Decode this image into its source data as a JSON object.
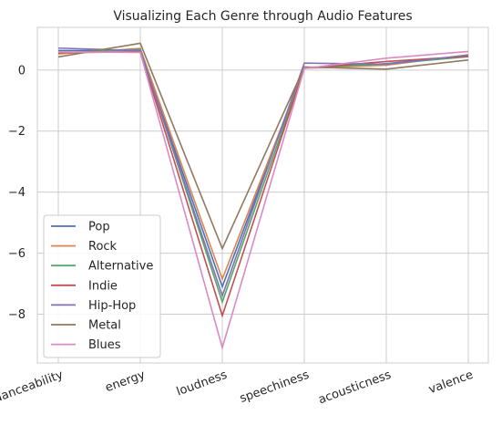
{
  "chart_data": {
    "type": "line",
    "title": "Visualizing Each Genre through Audio Features",
    "xlabel": "",
    "ylabel": "",
    "categories": [
      "danceability",
      "energy",
      "loudness",
      "speechiness",
      "acousticness",
      "valence"
    ],
    "ylim": [
      -9.6,
      1.4
    ],
    "y_ticks": [
      0,
      -2,
      -4,
      -6,
      -8
    ],
    "y_tick_labels": [
      "0",
      "−2",
      "−4",
      "−6",
      "−8"
    ],
    "grid": true,
    "legend_position": "lower-left",
    "series": [
      {
        "name": "Pop",
        "color": "#4c72b0",
        "values": [
          0.64,
          0.64,
          -7.1,
          0.08,
          0.21,
          0.48
        ]
      },
      {
        "name": "Rock",
        "color": "#dd8452",
        "values": [
          0.53,
          0.71,
          -6.85,
          0.06,
          0.16,
          0.5
        ]
      },
      {
        "name": "Alternative",
        "color": "#55a868",
        "values": [
          0.56,
          0.68,
          -7.6,
          0.07,
          0.2,
          0.44
        ]
      },
      {
        "name": "Indie",
        "color": "#c44e52",
        "values": [
          0.57,
          0.6,
          -8.05,
          0.06,
          0.28,
          0.45
        ]
      },
      {
        "name": "Hip-Hop",
        "color": "#8172b3",
        "values": [
          0.72,
          0.64,
          -7.4,
          0.23,
          0.19,
          0.49
        ]
      },
      {
        "name": "Metal",
        "color": "#937860",
        "values": [
          0.43,
          0.88,
          -5.85,
          0.1,
          0.03,
          0.33
        ]
      },
      {
        "name": "Blues",
        "color": "#da8bc3",
        "values": [
          0.59,
          0.58,
          -9.1,
          0.05,
          0.39,
          0.61
        ]
      }
    ]
  }
}
